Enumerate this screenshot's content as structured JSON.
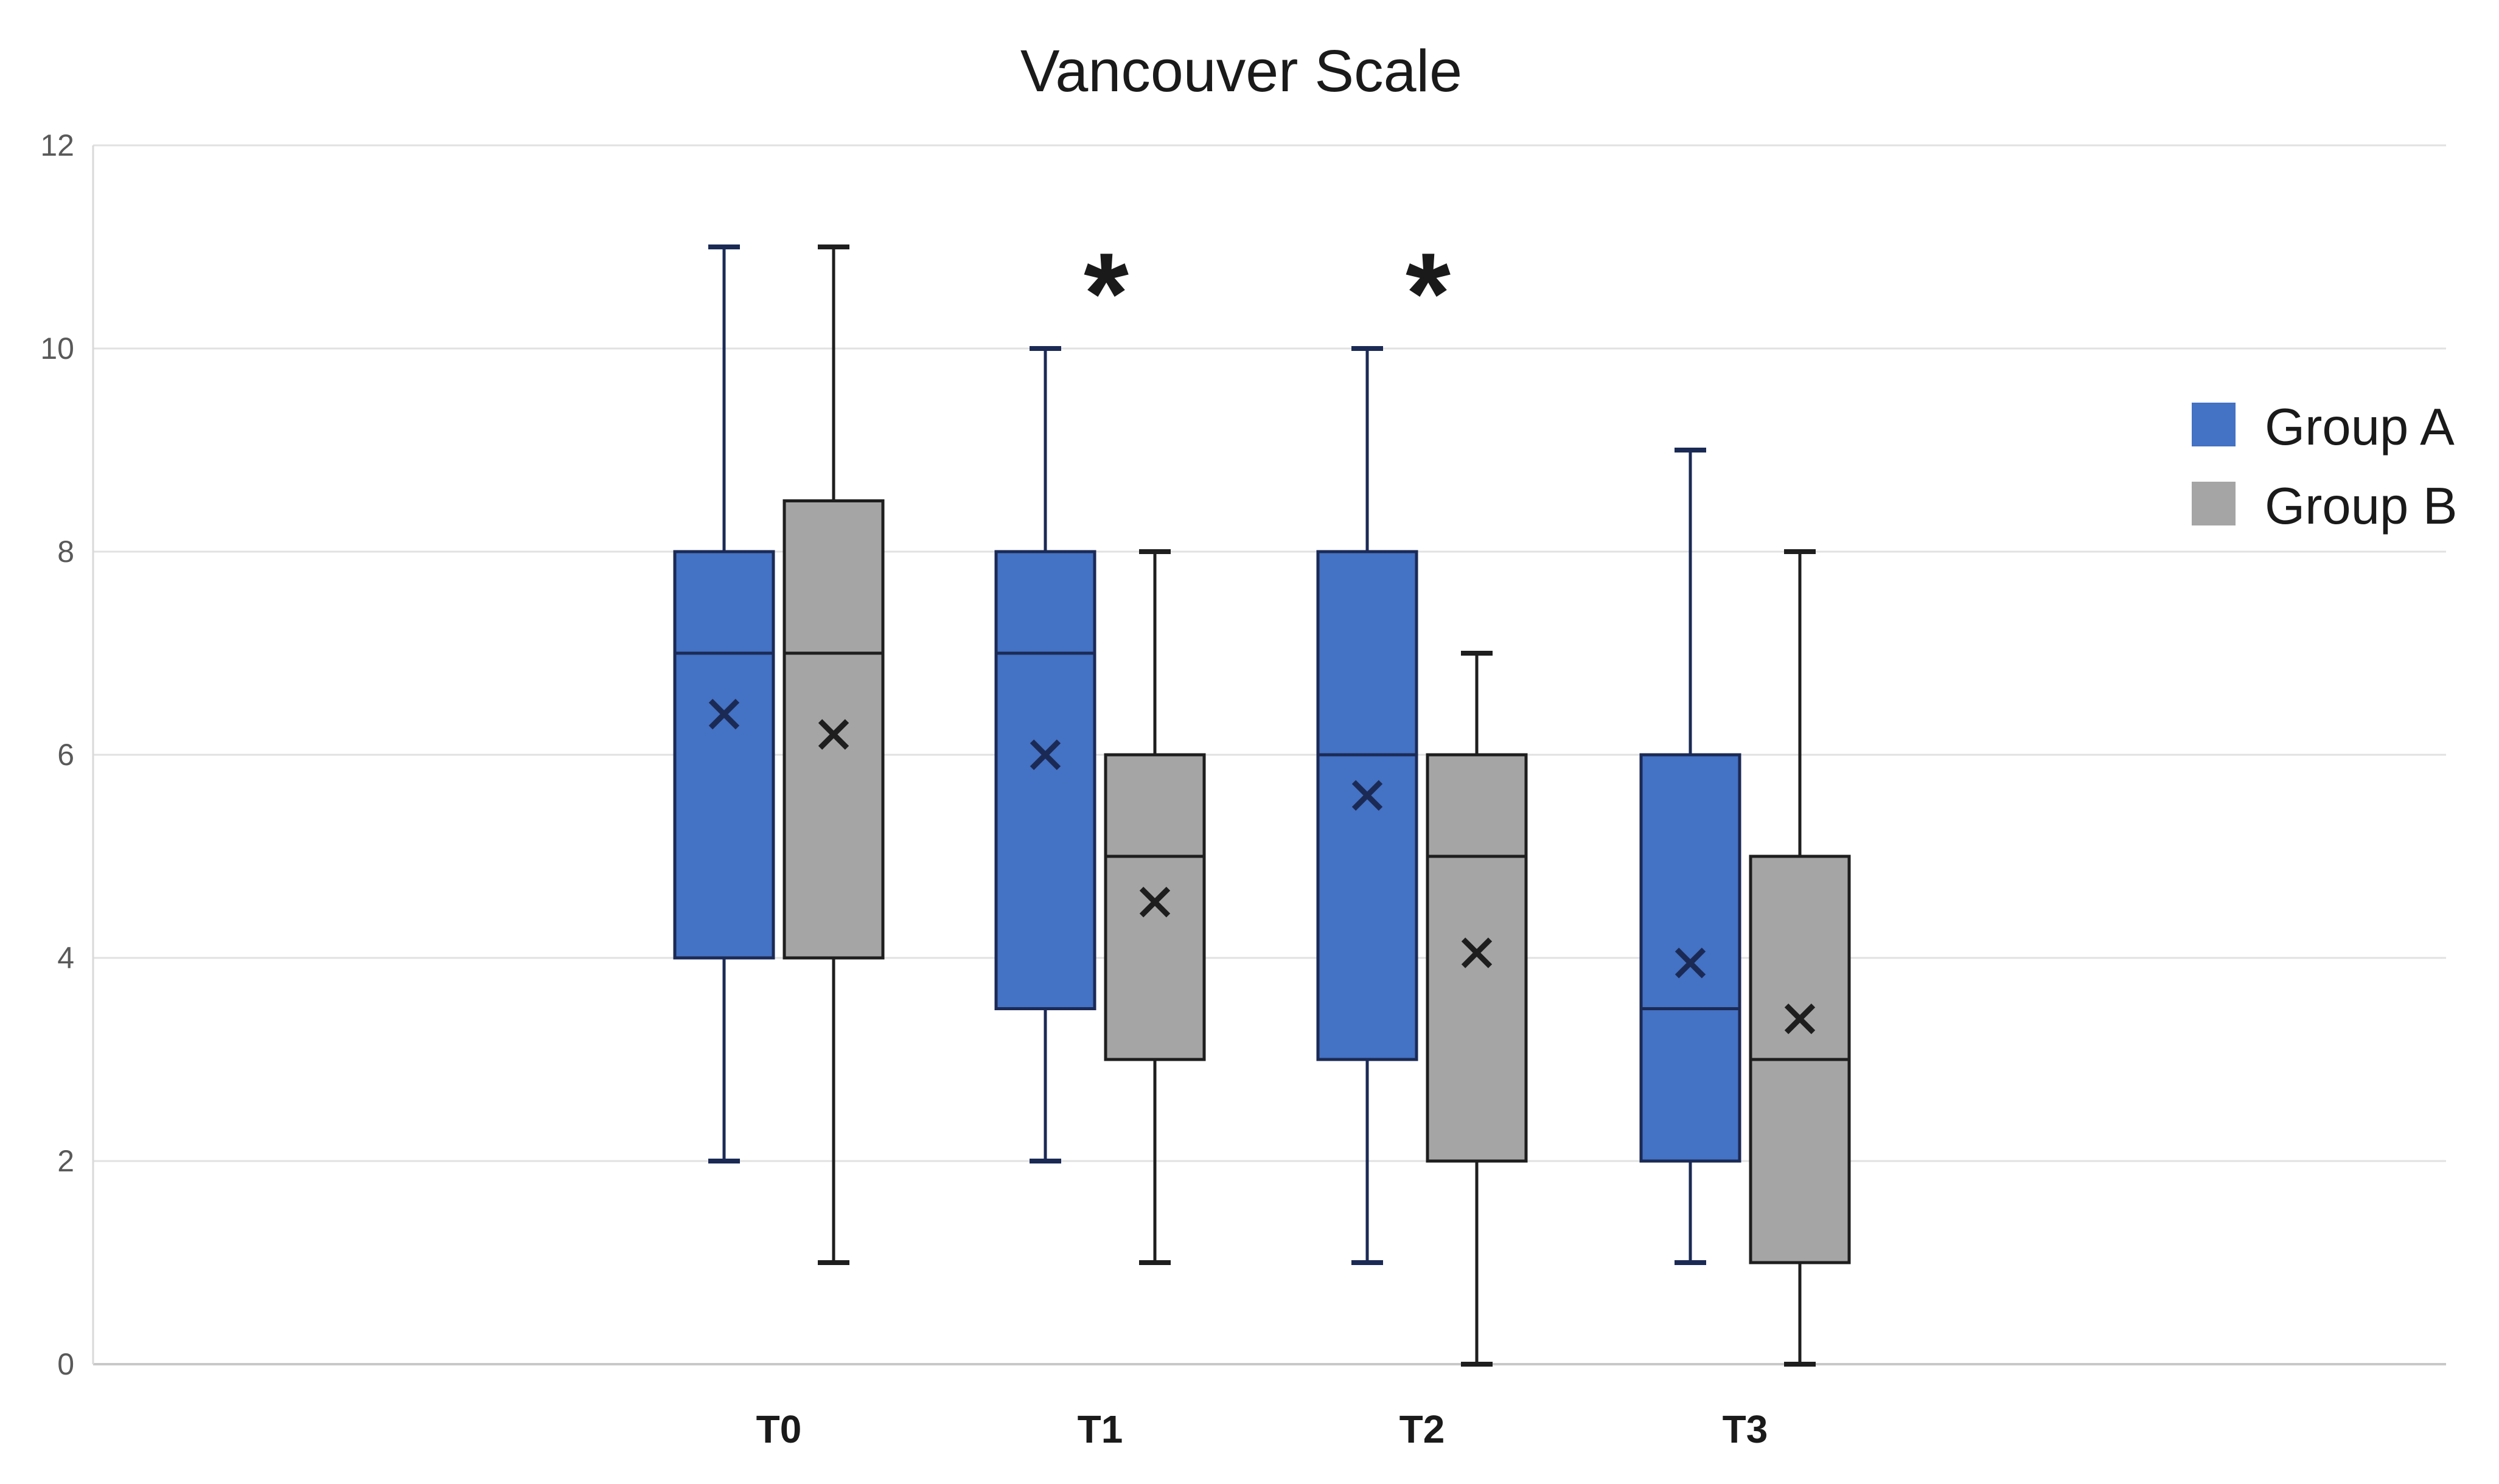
{
  "chart_data": {
    "type": "box",
    "title": "Vancouver Scale",
    "categories": [
      "T0",
      "T1",
      "T2",
      "T3"
    ],
    "xlabel": "",
    "ylabel": "",
    "y_axis": {
      "min": 0,
      "max": 12,
      "step": 2,
      "ticks": [
        0,
        2,
        4,
        6,
        8,
        10,
        12
      ]
    },
    "grid": true,
    "legend_position": "right",
    "series": [
      {
        "name": "Group A",
        "fill": "#4472C4",
        "stroke": "#1B2A55",
        "boxes": [
          {
            "category": "T0",
            "min": 2,
            "q1": 4,
            "median": 7,
            "q3": 8,
            "max": 11,
            "mean": 6.4
          },
          {
            "category": "T1",
            "min": 2,
            "q1": 3.5,
            "median": 7,
            "q3": 8,
            "max": 10,
            "mean": 6.0
          },
          {
            "category": "T2",
            "min": 1,
            "q1": 3,
            "median": 6,
            "q3": 8,
            "max": 10,
            "mean": 5.6
          },
          {
            "category": "T3",
            "min": 1,
            "q1": 2,
            "median": 3.5,
            "q3": 6,
            "max": 9,
            "mean": 3.95
          }
        ]
      },
      {
        "name": "Group B",
        "fill": "#A5A5A5",
        "stroke": "#1E1E1E",
        "boxes": [
          {
            "category": "T0",
            "min": 1,
            "q1": 4,
            "median": 7,
            "q3": 8.5,
            "max": 11,
            "mean": 6.2
          },
          {
            "category": "T1",
            "min": 1,
            "q1": 3,
            "median": 5,
            "q3": 6,
            "max": 8,
            "mean": 4.55
          },
          {
            "category": "T2",
            "min": 0,
            "q1": 2,
            "median": 5,
            "q3": 6,
            "max": 7,
            "mean": 4.05
          },
          {
            "category": "T3",
            "min": 0,
            "q1": 1,
            "median": 3,
            "q3": 5,
            "max": 8,
            "mean": 3.4
          }
        ]
      }
    ],
    "annotations": [
      {
        "text": "*",
        "category": "T1"
      },
      {
        "text": "*",
        "category": "T2"
      }
    ]
  },
  "colors": {
    "background": "#FFFFFF",
    "gridline": "#E1E1E1",
    "axis_line": "#C8C8C8",
    "plot_border": "#D9D9D9",
    "tick_label": "#595959",
    "category_label": "#1A1A1A",
    "annotation": "#1A1A1A",
    "title": "#1A1A1A",
    "legend_text": "#1A1A1A"
  }
}
